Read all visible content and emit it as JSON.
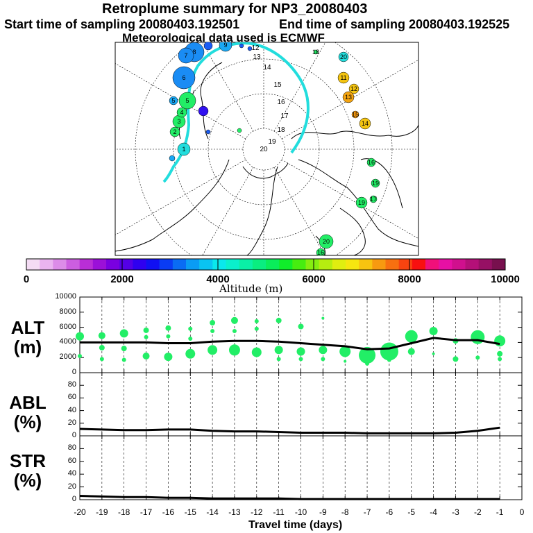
{
  "header": {
    "title": "Retroplume summary for NP3_20080403",
    "start_label": "Start time of sampling 20080403.192501",
    "end_label": "End time of sampling 20080403.192525",
    "met_label": "Meteorological data used is ECMWF"
  },
  "map": {
    "trajectory_color": "#22dddd",
    "day_labels": [
      "1",
      "2",
      "3",
      "4",
      "5",
      "6",
      "7",
      "8",
      "9",
      "10",
      "11",
      "12",
      "13",
      "14",
      "15",
      "16",
      "17",
      "18",
      "19",
      "20"
    ],
    "land_color": "#000000"
  },
  "colorbar": {
    "ticks": [
      "0",
      "2000",
      "4000",
      "6000",
      "8000",
      "10000"
    ],
    "label": "Altitude (m)",
    "colors": [
      "#f4dcf4",
      "#eab4f0",
      "#dc8ce8",
      "#cc5ee0",
      "#b92ed6",
      "#9b10d8",
      "#7a00e0",
      "#5400e6",
      "#2f00f0",
      "#1010f2",
      "#0a3cf4",
      "#0a6cf4",
      "#0a9cf4",
      "#0ac4f2",
      "#0ae8ec",
      "#0af0cc",
      "#0af0a6",
      "#0aee80",
      "#0aee5a",
      "#10ee2a",
      "#46ee10",
      "#86ee10",
      "#b6ee10",
      "#e0ee10",
      "#f6e610",
      "#f8c410",
      "#f89a10",
      "#f87010",
      "#f84410",
      "#f81010",
      "#f0107a",
      "#e610a4",
      "#d0108e",
      "#b41078",
      "#961064",
      "#78104e"
    ]
  },
  "chart_data": [
    {
      "type": "line",
      "panel": "ALT",
      "ylabel_line1": "ALT",
      "ylabel_line2": "(m)",
      "yticks": [
        "10000",
        "8000",
        "6000",
        "4000",
        "2000",
        "0"
      ],
      "ylim": [
        0,
        10000
      ],
      "x": [
        -20,
        -19,
        -18,
        -17,
        -16,
        -15,
        -14,
        -13,
        -12,
        -11,
        -10,
        -9,
        -8,
        -7,
        -6,
        -5,
        -4,
        -3,
        -2,
        -1
      ],
      "mean": [
        4000,
        4000,
        4000,
        4000,
        3900,
        3900,
        4100,
        4200,
        4200,
        4100,
        3900,
        3700,
        3500,
        3100,
        3200,
        3900,
        4600,
        4300,
        4300,
        3800
      ],
      "bubble_color": "#22ee66",
      "bubbles": [
        [
          -20,
          4800,
          6
        ],
        [
          -20,
          2200,
          3
        ],
        [
          -19,
          4900,
          5
        ],
        [
          -19,
          3300,
          4
        ],
        [
          -19,
          1800,
          3
        ],
        [
          -18,
          5200,
          6
        ],
        [
          -18,
          3200,
          4
        ],
        [
          -18,
          1700,
          3
        ],
        [
          -17,
          5600,
          4
        ],
        [
          -17,
          4700,
          3
        ],
        [
          -17,
          2200,
          5
        ],
        [
          -16,
          5900,
          4
        ],
        [
          -16,
          4800,
          3
        ],
        [
          -16,
          2100,
          6
        ],
        [
          -15,
          5800,
          3
        ],
        [
          -15,
          4500,
          3
        ],
        [
          -15,
          2500,
          7
        ],
        [
          -14,
          6600,
          4
        ],
        [
          -14,
          5500,
          3
        ],
        [
          -14,
          3000,
          7
        ],
        [
          -13,
          6900,
          5
        ],
        [
          -13,
          5500,
          3
        ],
        [
          -13,
          3000,
          8
        ],
        [
          -12,
          6800,
          3
        ],
        [
          -12,
          5800,
          3
        ],
        [
          -12,
          2700,
          7
        ],
        [
          -11,
          6900,
          4
        ],
        [
          -11,
          3000,
          6
        ],
        [
          -11,
          1800,
          3
        ],
        [
          -10,
          6100,
          4
        ],
        [
          -10,
          2800,
          6
        ],
        [
          -10,
          1800,
          3
        ],
        [
          -9,
          7200,
          2
        ],
        [
          -9,
          3000,
          6
        ],
        [
          -9,
          1800,
          3
        ],
        [
          -8,
          2800,
          8
        ],
        [
          -8,
          1500,
          2
        ],
        [
          -7,
          2300,
          12
        ],
        [
          -7,
          1200,
          3
        ],
        [
          -6,
          2800,
          13
        ],
        [
          -6,
          1700,
          3
        ],
        [
          -5,
          4800,
          9
        ],
        [
          -5,
          2800,
          5
        ],
        [
          -4,
          5500,
          6
        ],
        [
          -4,
          2500,
          2
        ],
        [
          -3,
          4200,
          4
        ],
        [
          -3,
          1800,
          4
        ],
        [
          -2,
          4700,
          10
        ],
        [
          -2,
          2000,
          3
        ],
        [
          -1,
          4200,
          8
        ],
        [
          -1,
          2500,
          4
        ],
        [
          -1,
          1800,
          3
        ]
      ]
    },
    {
      "type": "line",
      "panel": "ABL",
      "ylabel_line1": "ABL",
      "ylabel_line2": "(%)",
      "yticks": [
        "80",
        "60",
        "40",
        "20",
        "0"
      ],
      "ylim": [
        0,
        100
      ],
      "x": [
        -20,
        -19,
        -18,
        -17,
        -16,
        -15,
        -14,
        -13,
        -12,
        -11,
        -10,
        -9,
        -8,
        -7,
        -6,
        -5,
        -4,
        -3,
        -2,
        -1
      ],
      "values": [
        11,
        10,
        9,
        9,
        10,
        10,
        8,
        7,
        7,
        6,
        5,
        5,
        5,
        4,
        4,
        4,
        4,
        5,
        8,
        13
      ]
    },
    {
      "type": "line",
      "panel": "STR",
      "ylabel_line1": "STR",
      "ylabel_line2": "(%)",
      "yticks": [
        "80",
        "60",
        "40",
        "20",
        "0"
      ],
      "ylim": [
        0,
        100
      ],
      "x": [
        -20,
        -19,
        -18,
        -17,
        -16,
        -15,
        -14,
        -13,
        -12,
        -11,
        -10,
        -9,
        -8,
        -7,
        -6,
        -5,
        -4,
        -3,
        -2,
        -1
      ],
      "values": [
        6,
        5,
        4,
        4,
        3,
        3,
        2,
        2,
        2,
        2,
        1,
        1,
        1,
        1,
        1,
        1,
        1,
        1,
        1,
        1
      ],
      "xticks": [
        "-20",
        "-19",
        "-18",
        "-17",
        "-16",
        "-15",
        "-14",
        "-13",
        "-12",
        "-11",
        "-10",
        "-9",
        "-8",
        "-7",
        "-6",
        "-5",
        "-4",
        "-3",
        "-2",
        "-1",
        "0"
      ],
      "xlabel": "Travel time (days)"
    }
  ]
}
